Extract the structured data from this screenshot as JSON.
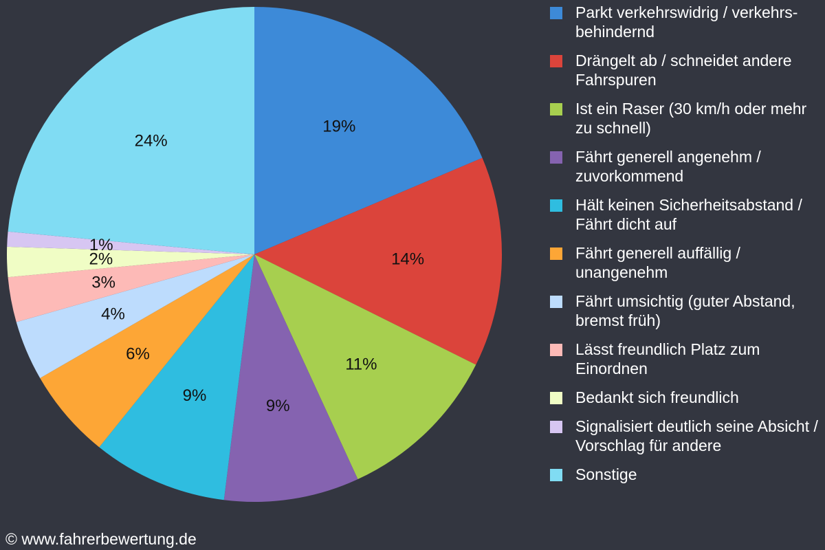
{
  "chart_data": {
    "type": "pie",
    "slices": [
      {
        "label": "Parkt verkehrswidrig / verkehrs-behindernd",
        "value": 19,
        "value_label": "19%",
        "color": "#3d8ad8"
      },
      {
        "label": "Drängelt ab / schneidet andere Fahrspuren",
        "value": 14,
        "value_label": "14%",
        "color": "#db443b"
      },
      {
        "label": "Ist ein Raser (30 km/h oder mehr zu schnell)",
        "value": 11,
        "value_label": "11%",
        "color": "#a7cf4f"
      },
      {
        "label": "Fährt generell angenehm / zuvorkommend",
        "value": 9,
        "value_label": "9%",
        "color": "#8563b0"
      },
      {
        "label": "Hält keinen Sicherheitsabstand / Fährt dicht auf",
        "value": 9,
        "value_label": "9%",
        "color": "#2fbde0"
      },
      {
        "label": "Fährt generell auffällig / unangenehm",
        "value": 6,
        "value_label": "6%",
        "color": "#fda636"
      },
      {
        "label": "Fährt umsichtig (guter Abstand, bremst früh)",
        "value": 4,
        "value_label": "4%",
        "color": "#bddcfd"
      },
      {
        "label": "Lässt freundlich Platz zum Einordnen",
        "value": 3,
        "value_label": "3%",
        "color": "#fdbab7"
      },
      {
        "label": "Bedankt sich freundlich",
        "value": 2,
        "value_label": "2%",
        "color": "#f0fdc5"
      },
      {
        "label": "Signalisiert deutlich seine Absicht / Vorschlag für andere",
        "value": 1,
        "value_label": "1%",
        "color": "#d7c6f2"
      },
      {
        "label": "Sonstige",
        "value": 24,
        "value_label": "24%",
        "color": "#80dcf3"
      }
    ],
    "legend": "right",
    "title": "",
    "start_angle": "12 o'clock",
    "direction": "clockwise"
  },
  "legend": {
    "items": [
      {
        "label": "Parkt verkehrswidrig / verkehrs-behindernd",
        "color": "#3d8ad8"
      },
      {
        "label": "Drängelt ab / schneidet andere Fahrspuren",
        "color": "#db443b"
      },
      {
        "label": "Ist ein Raser (30 km/h oder mehr zu schnell)",
        "color": "#a7cf4f"
      },
      {
        "label": "Fährt generell angenehm / zuvorkommend",
        "color": "#8563b0"
      },
      {
        "label": "Hält keinen Sicherheitsabstand / Fährt dicht auf",
        "color": "#2fbde0"
      },
      {
        "label": "Fährt generell auffällig / unangenehm",
        "color": "#fda636"
      },
      {
        "label": "Fährt umsichtig (guter Abstand, bremst früh)",
        "color": "#bddcfd"
      },
      {
        "label": "Lässt freundlich Platz zum Einordnen",
        "color": "#fdbab7"
      },
      {
        "label": "Bedankt sich freundlich",
        "color": "#f0fdc5"
      },
      {
        "label": "Signalisiert deutlich seine Absicht / Vorschlag für andere",
        "color": "#d7c6f2"
      },
      {
        "label": "Sonstige",
        "color": "#80dcf3"
      }
    ]
  },
  "footer": {
    "copyright": "© www.fahrerbewertung.de"
  },
  "colors": {
    "background": "#333640",
    "text": "#ffffff",
    "slice_label": "#111111"
  }
}
